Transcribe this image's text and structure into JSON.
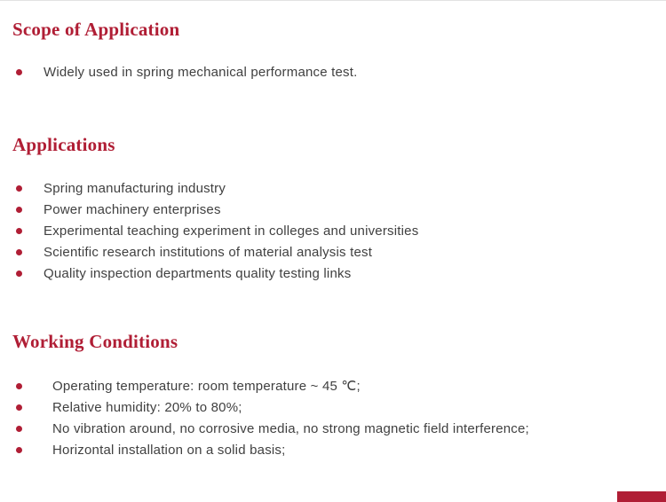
{
  "page": {
    "accent_color": "#b01e35",
    "body_text_color": "#404040"
  },
  "sections": [
    {
      "heading": "Scope of Application",
      "items": [
        "Widely used in spring mechanical performance test."
      ]
    },
    {
      "heading": "Applications",
      "items": [
        "Spring manufacturing industry",
        "Power machinery enterprises",
        "Experimental teaching experiment in colleges and universities",
        "Scientific research institutions of material analysis test",
        "Quality inspection departments quality testing links"
      ]
    },
    {
      "heading": "Working Conditions",
      "items": [
        "Operating temperature: room temperature ~ 45 ℃;",
        "Relative humidity: 20% to 80%;",
        "No vibration around, no corrosive media, no strong magnetic field interference;",
        "Horizontal installation on a solid basis;"
      ]
    }
  ]
}
